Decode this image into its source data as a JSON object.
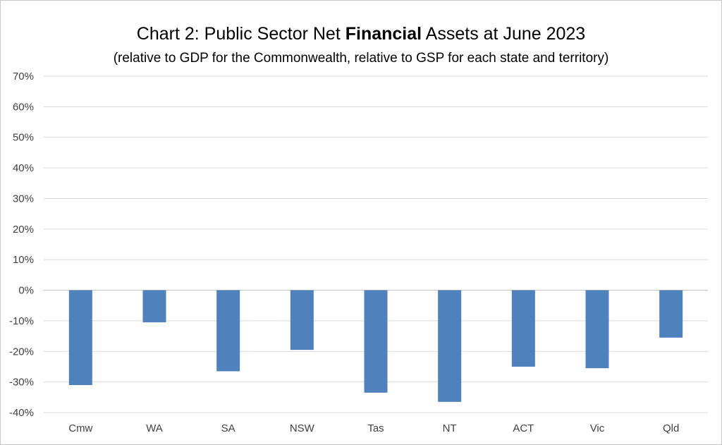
{
  "chart_data": {
    "type": "bar",
    "title": {
      "prefix": "Chart 2: Public Sector Net ",
      "bold": "Financial",
      "suffix": " Assets at June 2023"
    },
    "subtitle": "(relative to GDP for the Commonwealth, relative to GSP for each state and territory)",
    "categories": [
      "Cmw",
      "WA",
      "SA",
      "NSW",
      "Tas",
      "NT",
      "ACT",
      "Vic",
      "Qld"
    ],
    "values": [
      -31,
      -10.5,
      -26.5,
      -19.5,
      -33.5,
      -36.5,
      -25,
      -25.5,
      -15.5
    ],
    "unit": "%",
    "ylim": [
      -40,
      70
    ],
    "yticks": [
      70,
      60,
      50,
      40,
      30,
      20,
      10,
      0,
      -10,
      -20,
      -30,
      -40
    ],
    "ytick_labels": [
      "70%",
      "60%",
      "50%",
      "40%",
      "30%",
      "20%",
      "10%",
      "0%",
      "-10%",
      "-20%",
      "-30%",
      "-40%"
    ],
    "grid": true,
    "bar_color": "#4f81bd",
    "grid_color": "#d9d9d9",
    "axis_color": "#bfbfbf"
  }
}
